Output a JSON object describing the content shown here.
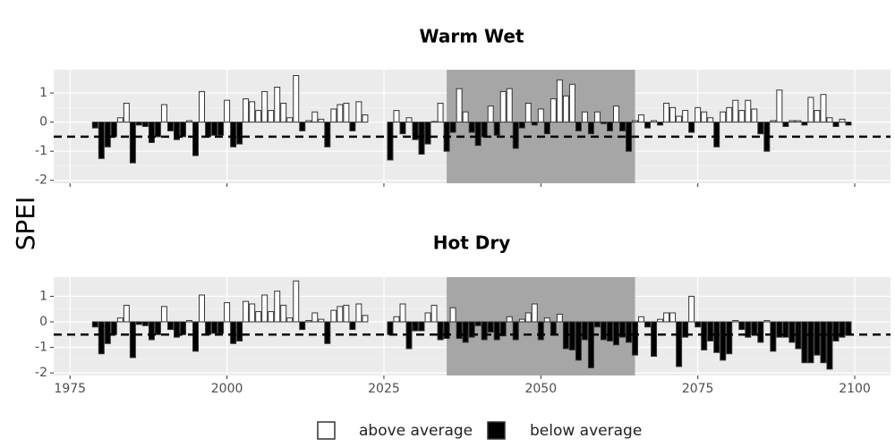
{
  "y_label": "SPEI",
  "legend": [
    {
      "name": "above average",
      "color": "#ffffff"
    },
    {
      "name": "below average",
      "color": "#000000"
    }
  ],
  "chart_data": [
    {
      "type": "bar",
      "title": "Warm Wet",
      "x": [
        1979,
        1980,
        1981,
        1982,
        1983,
        1984,
        1985,
        1986,
        1987,
        1988,
        1989,
        1990,
        1991,
        1992,
        1993,
        1994,
        1995,
        1996,
        1997,
        1998,
        1999,
        2000,
        2001,
        2002,
        2003,
        2004,
        2005,
        2006,
        2007,
        2008,
        2009,
        2010,
        2011,
        2012,
        2013,
        2014,
        2015,
        2016,
        2017,
        2018,
        2019,
        2020,
        2021,
        2022,
        2026,
        2027,
        2028,
        2029,
        2030,
        2031,
        2032,
        2033,
        2034,
        2035,
        2036,
        2037,
        2038,
        2039,
        2040,
        2041,
        2042,
        2043,
        2044,
        2045,
        2046,
        2047,
        2048,
        2049,
        2050,
        2051,
        2052,
        2053,
        2054,
        2055,
        2056,
        2057,
        2058,
        2059,
        2060,
        2061,
        2062,
        2063,
        2064,
        2065,
        2066,
        2067,
        2068,
        2069,
        2070,
        2071,
        2072,
        2073,
        2074,
        2075,
        2076,
        2077,
        2078,
        2079,
        2080,
        2081,
        2082,
        2083,
        2084,
        2085,
        2086,
        2087,
        2088,
        2089,
        2090,
        2091,
        2092,
        2093,
        2094,
        2095,
        2096,
        2097,
        2098,
        2099
      ],
      "values": [
        -0.2,
        -1.25,
        -0.85,
        -0.5,
        0.15,
        0.65,
        -1.4,
        -0.1,
        -0.15,
        -0.7,
        -0.5,
        0.6,
        -0.3,
        -0.6,
        -0.5,
        0.05,
        -1.15,
        1.05,
        -0.5,
        -0.45,
        -0.45,
        0.75,
        -0.85,
        -0.75,
        0.8,
        0.7,
        0.4,
        1.05,
        0.4,
        1.2,
        0.65,
        0.15,
        1.6,
        -0.3,
        0.05,
        0.35,
        0.1,
        -0.85,
        0.45,
        0.6,
        0.65,
        -0.3,
        0.7,
        0.25,
        -1.3,
        0.4,
        -0.4,
        0.15,
        -0.6,
        -1.1,
        -0.75,
        0.02,
        0.65,
        -1.0,
        -0.35,
        1.15,
        0.35,
        -0.35,
        -0.8,
        -0.5,
        0.55,
        -0.45,
        1.05,
        1.15,
        -0.9,
        -0.2,
        0.65,
        -0.1,
        0.45,
        -0.4,
        0.8,
        1.45,
        0.9,
        1.3,
        -0.3,
        0.35,
        -0.4,
        0.35,
        -0.05,
        -0.3,
        0.55,
        -0.3,
        -1.0,
        0.05,
        0.25,
        -0.2,
        0.05,
        -0.1,
        0.65,
        0.5,
        0.2,
        0.4,
        -0.35,
        0.5,
        0.35,
        0.15,
        -0.85,
        0.35,
        0.5,
        0.75,
        0.4,
        0.75,
        0.45,
        -0.4,
        -1.0,
        0.05,
        1.1,
        -0.15,
        0.05,
        0.05,
        -0.1,
        0.85,
        0.4,
        0.95,
        0.15,
        -0.15,
        0.1,
        -0.1
      ],
      "xlim": [
        1972.4,
        2105.7
      ],
      "ylim": [
        -2.1,
        1.8
      ],
      "yticks": [
        -2,
        -1,
        0,
        1
      ],
      "hline": -0.5,
      "shade": [
        2035,
        2065
      ],
      "grid": true
    },
    {
      "type": "bar",
      "title": "Hot Dry",
      "x": [
        1979,
        1980,
        1981,
        1982,
        1983,
        1984,
        1985,
        1986,
        1987,
        1988,
        1989,
        1990,
        1991,
        1992,
        1993,
        1994,
        1995,
        1996,
        1997,
        1998,
        1999,
        2000,
        2001,
        2002,
        2003,
        2004,
        2005,
        2006,
        2007,
        2008,
        2009,
        2010,
        2011,
        2012,
        2013,
        2014,
        2015,
        2016,
        2017,
        2018,
        2019,
        2020,
        2021,
        2022,
        2026,
        2027,
        2028,
        2029,
        2030,
        2031,
        2032,
        2033,
        2034,
        2035,
        2036,
        2037,
        2038,
        2039,
        2040,
        2041,
        2042,
        2043,
        2044,
        2045,
        2046,
        2047,
        2048,
        2049,
        2050,
        2051,
        2052,
        2053,
        2054,
        2055,
        2056,
        2057,
        2058,
        2059,
        2060,
        2061,
        2062,
        2063,
        2064,
        2065,
        2066,
        2067,
        2068,
        2069,
        2070,
        2071,
        2072,
        2073,
        2074,
        2075,
        2076,
        2077,
        2078,
        2079,
        2080,
        2081,
        2082,
        2083,
        2084,
        2085,
        2086,
        2087,
        2088,
        2089,
        2090,
        2091,
        2092,
        2093,
        2094,
        2095,
        2096,
        2097,
        2098,
        2099
      ],
      "values": [
        -0.2,
        -1.25,
        -0.85,
        -0.5,
        0.15,
        0.65,
        -1.4,
        -0.1,
        -0.15,
        -0.7,
        -0.5,
        0.6,
        -0.3,
        -0.6,
        -0.5,
        0.05,
        -1.15,
        1.05,
        -0.5,
        -0.45,
        -0.45,
        0.75,
        -0.85,
        -0.75,
        0.8,
        0.7,
        0.4,
        1.05,
        0.4,
        1.2,
        0.65,
        0.15,
        1.6,
        -0.3,
        0.05,
        0.35,
        0.1,
        -0.85,
        0.45,
        0.6,
        0.65,
        -0.3,
        0.7,
        0.25,
        -0.5,
        0.2,
        0.7,
        -1.05,
        -0.35,
        -0.35,
        0.35,
        0.65,
        -0.7,
        -0.65,
        0.55,
        -0.65,
        -0.8,
        -0.6,
        -0.15,
        -0.7,
        -0.4,
        -0.7,
        -0.55,
        0.2,
        -0.7,
        0.1,
        0.35,
        0.7,
        -0.7,
        0.15,
        -0.5,
        0.3,
        -1.05,
        -1.1,
        -1.5,
        -0.7,
        -1.8,
        -0.2,
        -0.7,
        -0.75,
        -0.9,
        -0.6,
        -0.8,
        -1.3,
        0.2,
        -0.2,
        -1.35,
        0.1,
        0.35,
        0.35,
        -1.75,
        -0.6,
        1.0,
        -0.2,
        -1.1,
        -0.75,
        -1.2,
        -1.5,
        -1.25,
        0.05,
        -0.3,
        -0.6,
        -0.5,
        -0.8,
        0.05,
        -1.15,
        -0.6,
        -0.6,
        -0.8,
        -1.05,
        -1.6,
        -1.6,
        -1.3,
        -1.6,
        -1.85,
        -0.75,
        -0.6,
        -0.5
      ],
      "xlim": [
        1972.4,
        2105.7
      ],
      "ylim": [
        -2.1,
        1.75
      ],
      "yticks": [
        -2,
        -1,
        0,
        1
      ],
      "xticks": [
        1975,
        2000,
        2025,
        2050,
        2075,
        2100
      ],
      "hline": -0.5,
      "shade": [
        2035,
        2065
      ],
      "grid": true
    }
  ]
}
